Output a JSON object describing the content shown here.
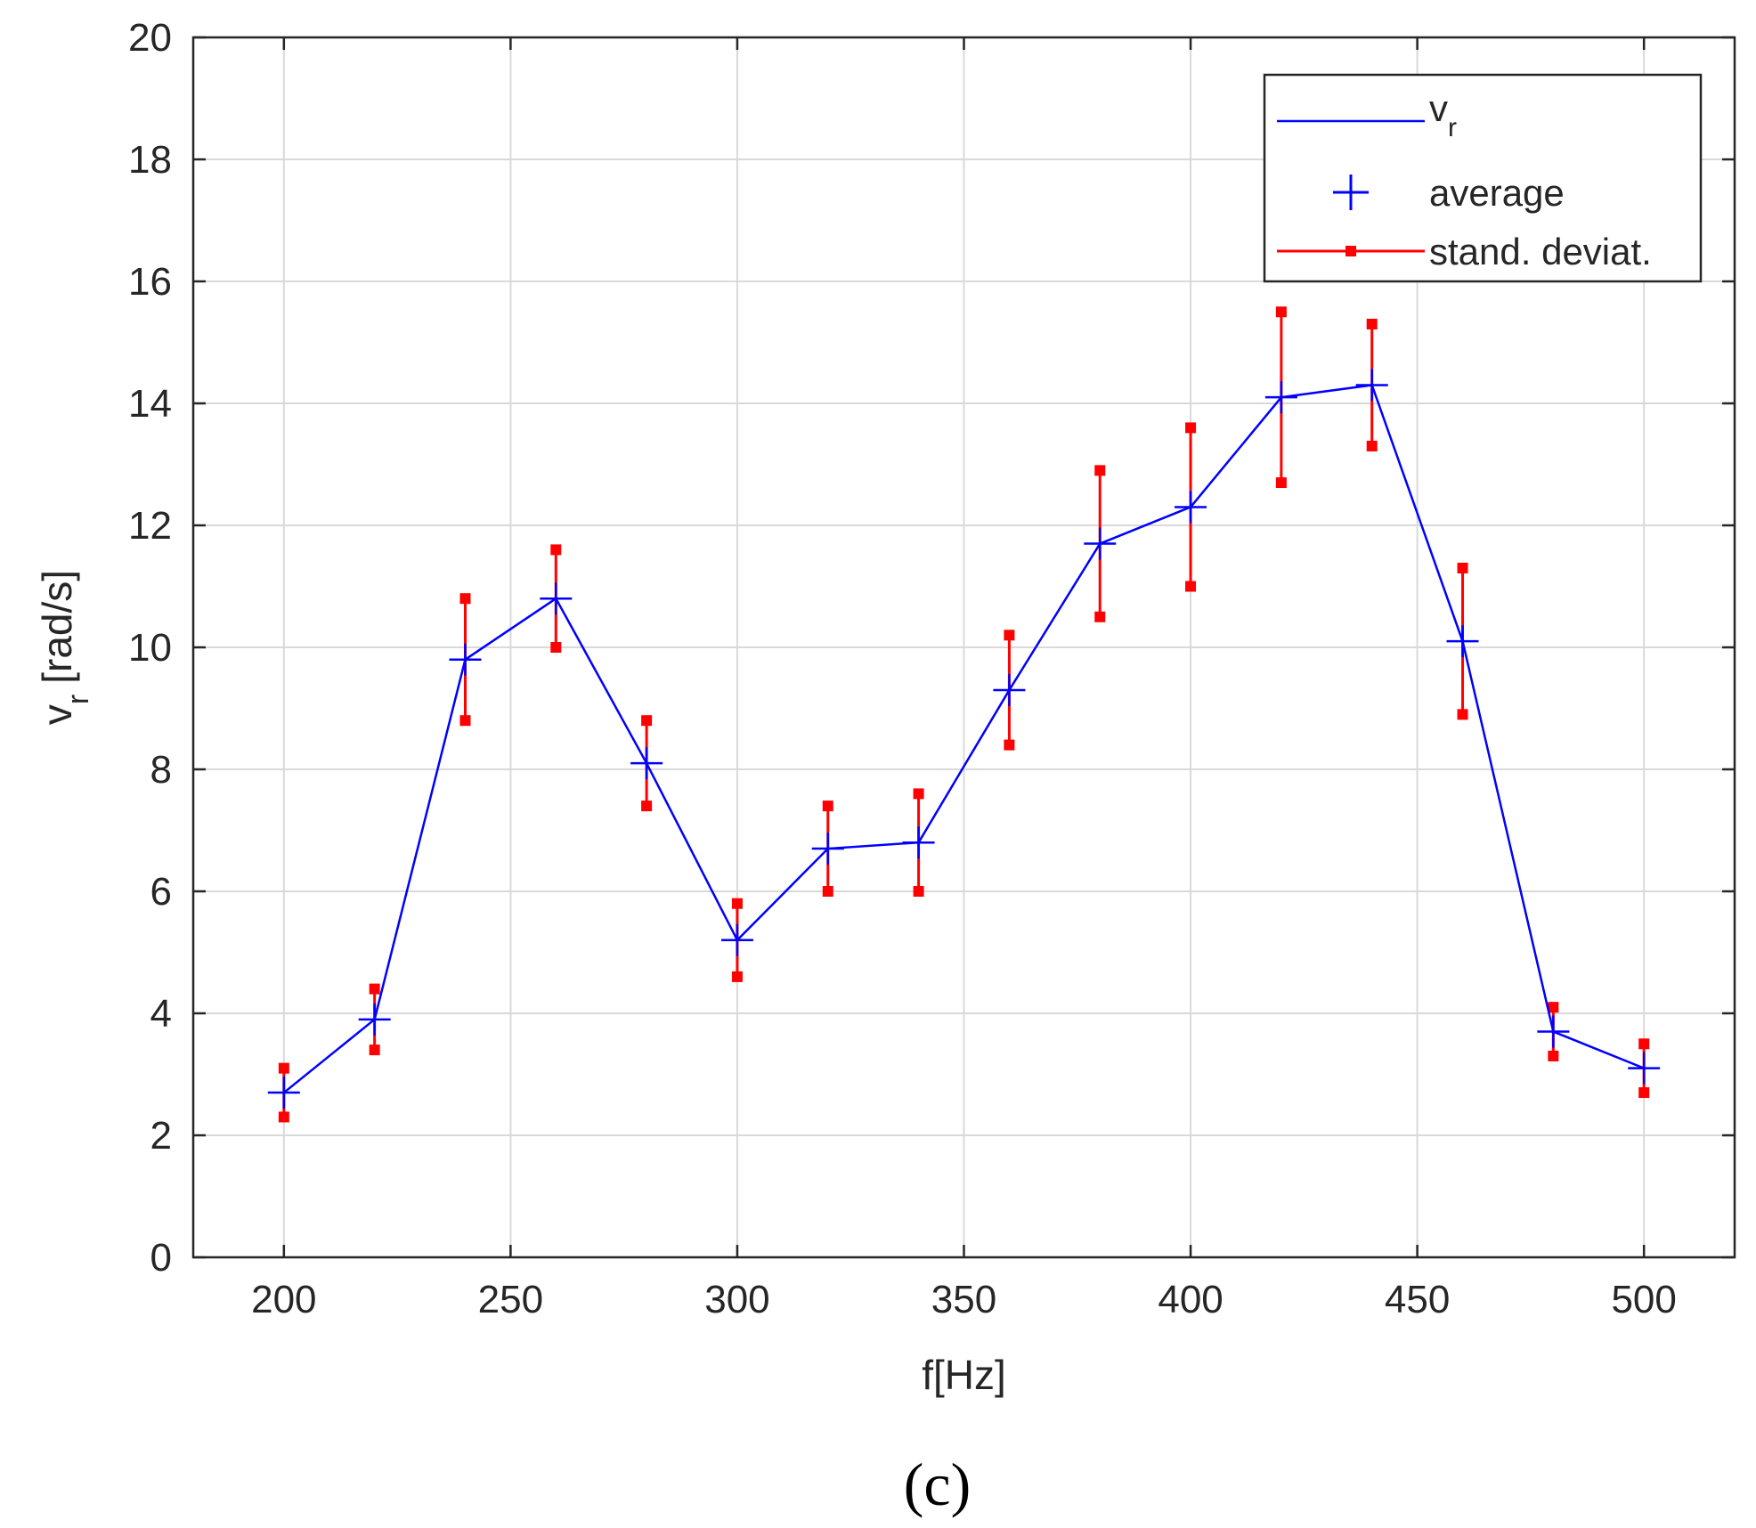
{
  "chart_data": {
    "type": "line",
    "xlabel": "f[Hz]",
    "ylabel": "v",
    "ylabel_subscript": "r",
    "ylabel_unit": "[rad/s]",
    "xlim": [
      180,
      520
    ],
    "ylim": [
      0,
      20
    ],
    "xticks": [
      "200",
      "250",
      "300",
      "350",
      "400",
      "450",
      "500"
    ],
    "yticks": [
      "0",
      "2",
      "4",
      "6",
      "8",
      "10",
      "12",
      "14",
      "16",
      "18",
      "20"
    ],
    "grid": true,
    "legend_position": "top-right",
    "legend": [
      {
        "label": "v",
        "subscript": "r",
        "kind": "line"
      },
      {
        "label": "average",
        "kind": "plus-marker"
      },
      {
        "label": "stand. deviat.",
        "kind": "errorbar"
      }
    ],
    "colors": {
      "line": "#0000ff",
      "average": "#0000ff",
      "error": "#ff0000",
      "grid": "#d9d9d9",
      "axis": "#262626"
    },
    "series": [
      {
        "name": "v_r",
        "x": [
          200,
          220,
          240,
          260,
          280,
          300,
          320,
          340,
          360,
          380,
          400,
          420,
          440,
          460,
          480,
          500
        ],
        "average": [
          2.7,
          3.9,
          9.8,
          10.8,
          8.1,
          5.2,
          6.7,
          6.8,
          9.3,
          11.7,
          12.3,
          14.1,
          14.3,
          10.1,
          3.7,
          3.1
        ],
        "lower": [
          2.3,
          3.4,
          8.8,
          10.0,
          7.4,
          4.6,
          6.0,
          6.0,
          8.4,
          10.5,
          11.0,
          12.7,
          13.3,
          8.9,
          3.3,
          2.7
        ],
        "upper": [
          3.1,
          4.4,
          10.8,
          11.6,
          8.8,
          5.8,
          7.4,
          7.6,
          10.2,
          12.9,
          13.6,
          15.5,
          15.3,
          11.3,
          4.1,
          3.5
        ]
      }
    ]
  },
  "caption": "(c)"
}
